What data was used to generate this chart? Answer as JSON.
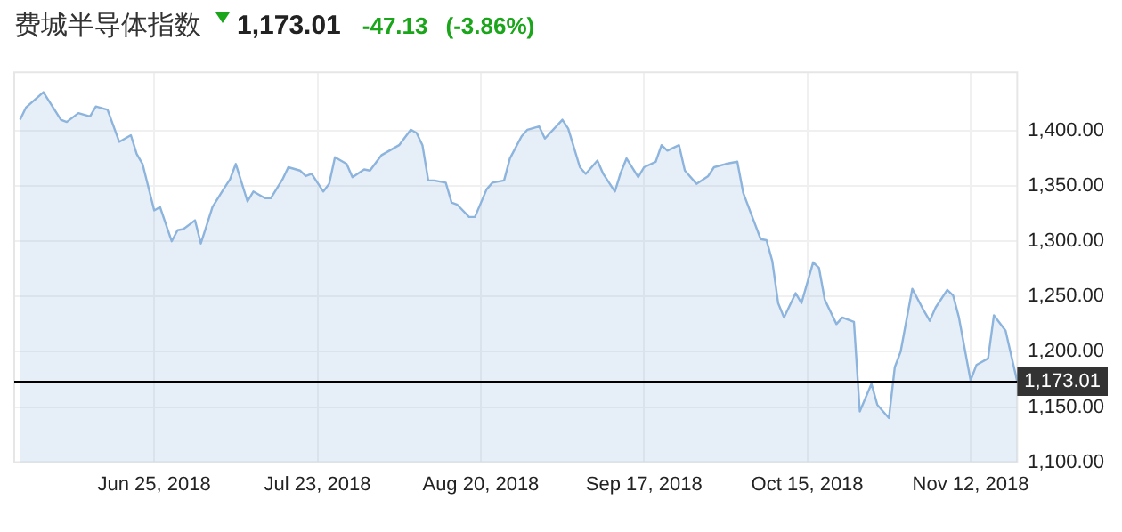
{
  "chart_data": {
    "type": "area",
    "title": "费城半导体指数",
    "subtitle": "1,173.01",
    "annotations": [
      "-47.13",
      "(-3.86%)"
    ],
    "x": [
      "2018-06-02",
      "2018-06-03",
      "2018-06-06",
      "2018-06-09",
      "2018-06-10",
      "2018-06-12",
      "2018-06-14",
      "2018-06-15",
      "2018-06-17",
      "2018-06-19",
      "2018-06-21",
      "2018-06-22",
      "2018-06-23",
      "2018-06-25",
      "2018-06-26",
      "2018-06-28",
      "2018-06-29",
      "2018-06-30",
      "2018-07-02",
      "2018-07-03",
      "2018-07-05",
      "2018-07-07",
      "2018-07-08",
      "2018-07-09",
      "2018-07-11",
      "2018-07-12",
      "2018-07-14",
      "2018-07-15",
      "2018-07-17",
      "2018-07-18",
      "2018-07-20",
      "2018-07-21",
      "2018-07-22",
      "2018-07-24",
      "2018-07-25",
      "2018-07-26",
      "2018-07-28",
      "2018-07-29",
      "2018-07-31",
      "2018-08-01",
      "2018-08-03",
      "2018-08-04",
      "2018-08-06",
      "2018-08-08",
      "2018-08-09",
      "2018-08-10",
      "2018-08-11",
      "2018-08-12",
      "2018-08-14",
      "2018-08-15",
      "2018-08-16",
      "2018-08-18",
      "2018-08-19",
      "2018-08-21",
      "2018-08-22",
      "2018-08-24",
      "2018-08-25",
      "2018-08-27",
      "2018-08-28",
      "2018-08-30",
      "2018-08-31",
      "2018-09-03",
      "2018-09-04",
      "2018-09-06",
      "2018-09-07",
      "2018-09-09",
      "2018-09-10",
      "2018-09-12",
      "2018-09-13",
      "2018-09-14",
      "2018-09-16",
      "2018-09-17",
      "2018-09-19",
      "2018-09-20",
      "2018-09-21",
      "2018-09-23",
      "2018-09-24",
      "2018-09-26",
      "2018-09-28",
      "2018-09-29",
      "2018-10-01",
      "2018-10-03",
      "2018-10-04",
      "2018-10-06",
      "2018-10-07",
      "2018-10-08",
      "2018-10-09",
      "2018-10-10",
      "2018-10-11",
      "2018-10-13",
      "2018-10-14",
      "2018-10-16",
      "2018-10-17",
      "2018-10-18",
      "2018-10-20",
      "2018-10-21",
      "2018-10-23",
      "2018-10-24",
      "2018-10-26",
      "2018-10-27",
      "2018-10-29",
      "2018-10-30",
      "2018-10-31",
      "2018-11-02",
      "2018-11-04",
      "2018-11-05",
      "2018-11-06",
      "2018-11-08",
      "2018-11-09",
      "2018-11-10",
      "2018-11-12",
      "2018-11-13",
      "2018-11-15",
      "2018-11-16",
      "2018-11-18",
      "2018-11-20"
    ],
    "values": [
      1410,
      1421,
      1435,
      1410,
      1408,
      1416,
      1413,
      1422,
      1419,
      1390,
      1396,
      1379,
      1370,
      1328,
      1331,
      1300,
      1310,
      1311,
      1319,
      1298,
      1331,
      1348,
      1356,
      1370,
      1336,
      1345,
      1339,
      1339,
      1356,
      1367,
      1364,
      1359,
      1361,
      1345,
      1352,
      1376,
      1370,
      1358,
      1365,
      1364,
      1378,
      1381,
      1387,
      1401,
      1398,
      1387,
      1355,
      1355,
      1353,
      1335,
      1333,
      1322,
      1322,
      1347,
      1353,
      1355,
      1375,
      1395,
      1401,
      1404,
      1393,
      1410,
      1402,
      1367,
      1361,
      1373,
      1361,
      1345,
      1362,
      1375,
      1358,
      1367,
      1372,
      1387,
      1382,
      1387,
      1364,
      1352,
      1359,
      1367,
      1370,
      1372,
      1344,
      1316,
      1302,
      1301,
      1282,
      1244,
      1231,
      1253,
      1244,
      1281,
      1276,
      1247,
      1225,
      1231,
      1227,
      1146,
      1171,
      1152,
      1140,
      1186,
      1200,
      1257,
      1237,
      1228,
      1240,
      1256,
      1251,
      1231,
      1174,
      1188,
      1194,
      1233,
      1219,
      1173.01
    ],
    "color": "#8db4dd",
    "marker": "none",
    "grid": true,
    "xlim": [
      "2018-06-01",
      "2018-11-20"
    ],
    "xticks": [
      {
        "value": "2018-06-25",
        "label": "Jun 25, 2018"
      },
      {
        "value": "2018-07-23",
        "label": "Jul 23, 2018"
      },
      {
        "value": "2018-08-20",
        "label": "Aug 20, 2018"
      },
      {
        "value": "2018-09-17",
        "label": "Sep 17, 2018"
      },
      {
        "value": "2018-10-15",
        "label": "Oct 15, 2018"
      },
      {
        "value": "2018-11-12",
        "label": "Nov 12, 2018"
      }
    ],
    "ylim": [
      1100,
      1453
    ],
    "yticks": [
      {
        "value": 1100,
        "label": "1,100.00"
      },
      {
        "value": 1150,
        "label": "1,150.00"
      },
      {
        "value": 1200,
        "label": "1,200.00"
      },
      {
        "value": 1250,
        "label": "1,250.00"
      },
      {
        "value": 1300,
        "label": "1,300.00"
      },
      {
        "value": 1350,
        "label": "1,350.00"
      },
      {
        "value": 1400,
        "label": "1,400.00"
      }
    ],
    "ref_lines": [
      {
        "axis": "y",
        "value": 1173.01,
        "label": "1,173.01",
        "color": "#000000"
      }
    ]
  }
}
